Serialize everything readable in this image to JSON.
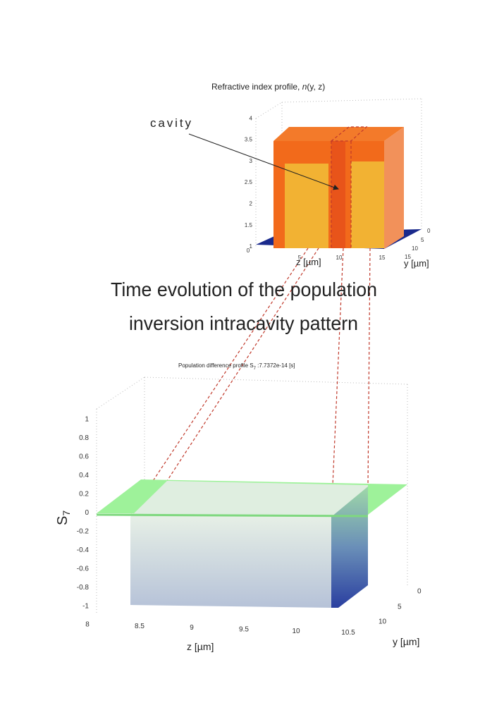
{
  "top_plot": {
    "title": {
      "text": "Refractive index profile, ",
      "italic": "n",
      "rest": "(y, z)"
    },
    "vertical_ticks": [
      1,
      1.5,
      2,
      2.5,
      3,
      3.5,
      4
    ],
    "z_ticks": [
      0,
      5,
      10,
      15
    ],
    "y_ticks": [
      0,
      5,
      10,
      15
    ],
    "z_label": "z [µm]",
    "y_label": "y [µm]"
  },
  "annotation": "cavity",
  "heading": [
    "Time evolution of the population",
    "inversion intracavity pattern"
  ],
  "bottom_plot": {
    "title": {
      "text": "Population difference profile S",
      "subscript": "7",
      "rest": " :7.7372e-14 [s]"
    },
    "vertical_label": {
      "symbol": "S",
      "subscript": "7"
    },
    "vertical_ticks": [
      1,
      0.8,
      0.6,
      0.4,
      0.2,
      0,
      -0.2,
      -0.4,
      -0.6,
      -0.8,
      -1
    ],
    "z_ticks": [
      8,
      8.5,
      9,
      9.5,
      10,
      10.5
    ],
    "y_ticks": [
      0,
      5,
      10
    ],
    "z_label": "z [µm]",
    "y_label": "y [µm]"
  }
}
